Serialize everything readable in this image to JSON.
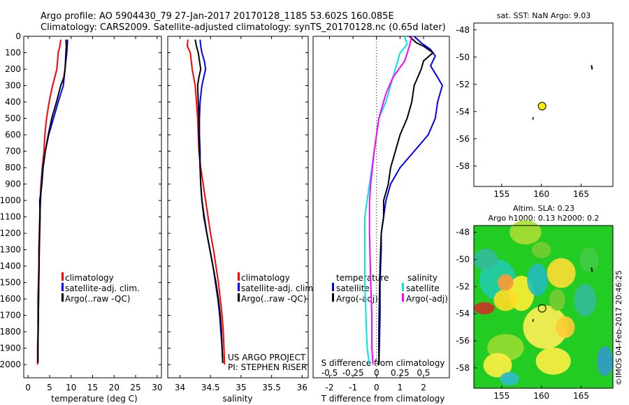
{
  "header": {
    "title": "Argo profile: AO 5904430_79 27-Jan-2017 20170128_1185 53.602S 160.085E",
    "subtitle": "Climatology: CARS2009. Satellite-adjusted climatology: synTS_20170128.nc (0.65d later)"
  },
  "side_text": {
    "credit": "©IMOS 04-Feb-2017 20:46:25",
    "project": "US ARGO PROJECT",
    "pi": "PI: STEPHEN RISER"
  },
  "colors": {
    "climatology": "#ff0000",
    "satellite": "#0000ff",
    "argo": "#000000",
    "sat_s": "#00e5e5",
    "argo_s": "#ff00ff"
  },
  "chart_data": [
    {
      "id": "temperature",
      "type": "line",
      "xlabel": "temperature (deg C)",
      "xlim": [
        -1,
        31
      ],
      "xticks": [
        0,
        5,
        10,
        15,
        20,
        25,
        30
      ],
      "ylim": [
        2080,
        0
      ],
      "yticks": [
        0,
        100,
        200,
        300,
        400,
        500,
        600,
        700,
        800,
        900,
        1000,
        1100,
        1200,
        1300,
        1400,
        1500,
        1600,
        1700,
        1800,
        1900,
        2000
      ],
      "legend": [
        "climatology",
        "satellite-adj. clim.",
        "Argo(..raw -QC)"
      ],
      "series": [
        {
          "name": "climatology",
          "color": "#ff0000",
          "points": [
            [
              7.6,
              20
            ],
            [
              7.4,
              60
            ],
            [
              7.0,
              100
            ],
            [
              6.7,
              200
            ],
            [
              5.7,
              300
            ],
            [
              4.9,
              400
            ],
            [
              4.3,
              500
            ],
            [
              3.9,
              600
            ],
            [
              3.7,
              700
            ],
            [
              3.3,
              800
            ],
            [
              3.0,
              900
            ],
            [
              2.8,
              1000
            ],
            [
              2.7,
              1100
            ],
            [
              2.6,
              1200
            ],
            [
              2.5,
              1300
            ],
            [
              2.5,
              1400
            ],
            [
              2.4,
              1500
            ],
            [
              2.3,
              1600
            ],
            [
              2.3,
              1700
            ],
            [
              2.3,
              1800
            ],
            [
              2.2,
              1900
            ],
            [
              2.2,
              2000
            ]
          ]
        },
        {
          "name": "satellite-adj. clim.",
          "color": "#0000ff",
          "points": [
            [
              9.2,
              20
            ],
            [
              9.0,
              100
            ],
            [
              8.8,
              150
            ],
            [
              8.2,
              300
            ],
            [
              7.0,
              400
            ],
            [
              5.9,
              500
            ],
            [
              4.8,
              600
            ],
            [
              4.0,
              700
            ],
            [
              3.4,
              800
            ],
            [
              3.1,
              900
            ],
            [
              2.9,
              1000
            ],
            [
              2.75,
              1100
            ],
            [
              2.65,
              1200
            ],
            [
              2.6,
              1300
            ],
            [
              2.55,
              1400
            ],
            [
              2.5,
              1500
            ],
            [
              2.45,
              1600
            ],
            [
              2.4,
              1700
            ],
            [
              2.35,
              1800
            ],
            [
              2.3,
              1900
            ],
            [
              2.3,
              1980
            ]
          ]
        },
        {
          "name": "Argo(..raw -QC)",
          "color": "#000000",
          "points": [
            [
              8.8,
              20
            ],
            [
              8.9,
              60
            ],
            [
              8.8,
              100
            ],
            [
              8.6,
              200
            ],
            [
              8.3,
              250
            ],
            [
              7.6,
              300
            ],
            [
              6.6,
              400
            ],
            [
              5.5,
              500
            ],
            [
              4.7,
              600
            ],
            [
              4.0,
              700
            ],
            [
              3.5,
              800
            ],
            [
              3.2,
              900
            ],
            [
              3.0,
              950
            ],
            [
              2.7,
              1000
            ],
            [
              2.8,
              1100
            ],
            [
              2.7,
              1200
            ],
            [
              2.6,
              1300
            ],
            [
              2.55,
              1400
            ],
            [
              2.5,
              1500
            ],
            [
              2.45,
              1600
            ],
            [
              2.4,
              1700
            ],
            [
              2.35,
              1800
            ],
            [
              2.3,
              1900
            ],
            [
              2.3,
              1990
            ]
          ]
        }
      ]
    },
    {
      "id": "salinity",
      "type": "line",
      "xlabel": "salinity",
      "xlim": [
        33.8,
        36.1
      ],
      "xticks": [
        34,
        34.5,
        35,
        35.5,
        36
      ],
      "ylim": [
        2080,
        0
      ],
      "yticks": [
        0,
        100,
        200,
        300,
        400,
        500,
        600,
        700,
        800,
        900,
        1000,
        1100,
        1200,
        1300,
        1400,
        1500,
        1600,
        1700,
        1800,
        1900,
        2000
      ],
      "legend": [
        "climatology",
        "satellite-adj. clim.",
        "Argo(..raw -QC)"
      ],
      "series": [
        {
          "name": "climatology",
          "color": "#ff0000",
          "points": [
            [
              34.13,
              20
            ],
            [
              34.12,
              60
            ],
            [
              34.17,
              100
            ],
            [
              34.2,
              200
            ],
            [
              34.25,
              300
            ],
            [
              34.27,
              400
            ],
            [
              34.29,
              500
            ],
            [
              34.3,
              600
            ],
            [
              34.31,
              700
            ],
            [
              34.34,
              800
            ],
            [
              34.38,
              900
            ],
            [
              34.42,
              1000
            ],
            [
              34.46,
              1100
            ],
            [
              34.5,
              1200
            ],
            [
              34.55,
              1300
            ],
            [
              34.59,
              1400
            ],
            [
              34.63,
              1500
            ],
            [
              34.66,
              1600
            ],
            [
              34.69,
              1700
            ],
            [
              34.71,
              1800
            ],
            [
              34.72,
              1900
            ],
            [
              34.73,
              2000
            ]
          ]
        },
        {
          "name": "satellite-adj. clim.",
          "color": "#0000ff",
          "points": [
            [
              34.33,
              20
            ],
            [
              34.34,
              60
            ],
            [
              34.36,
              100
            ],
            [
              34.4,
              150
            ],
            [
              34.42,
              200
            ],
            [
              34.36,
              300
            ],
            [
              34.33,
              400
            ],
            [
              34.32,
              500
            ],
            [
              34.32,
              600
            ],
            [
              34.33,
              700
            ],
            [
              34.33,
              800
            ],
            [
              34.34,
              900
            ],
            [
              34.36,
              1000
            ],
            [
              34.4,
              1100
            ],
            [
              34.44,
              1200
            ],
            [
              34.49,
              1300
            ],
            [
              34.54,
              1400
            ],
            [
              34.58,
              1500
            ],
            [
              34.62,
              1600
            ],
            [
              34.65,
              1700
            ],
            [
              34.67,
              1800
            ],
            [
              34.69,
              1900
            ],
            [
              34.7,
              1990
            ]
          ]
        },
        {
          "name": "Argo(..raw -QC)",
          "color": "#000000",
          "points": [
            [
              34.25,
              20
            ],
            [
              34.27,
              60
            ],
            [
              34.3,
              100
            ],
            [
              34.32,
              150
            ],
            [
              34.34,
              200
            ],
            [
              34.31,
              250
            ],
            [
              34.29,
              300
            ],
            [
              34.3,
              400
            ],
            [
              34.31,
              500
            ],
            [
              34.31,
              600
            ],
            [
              34.32,
              700
            ],
            [
              34.33,
              800
            ],
            [
              34.34,
              900
            ],
            [
              34.36,
              1000
            ],
            [
              34.39,
              1100
            ],
            [
              34.44,
              1200
            ],
            [
              34.49,
              1300
            ],
            [
              34.54,
              1400
            ],
            [
              34.59,
              1500
            ],
            [
              34.63,
              1600
            ],
            [
              34.66,
              1700
            ],
            [
              34.68,
              1800
            ],
            [
              34.69,
              1900
            ],
            [
              34.7,
              1990
            ]
          ]
        }
      ]
    },
    {
      "id": "difference",
      "type": "line",
      "xlabel": "T difference from climatology",
      "xlabel_top": "S difference from climatology",
      "xlim": [
        -2.7,
        3.1
      ],
      "xticks": [
        -2,
        -1,
        0,
        1,
        2
      ],
      "xticks_s": [
        {
          "label": "-0.5",
          "x": -2
        },
        {
          "label": "-0.25",
          "x": -1
        },
        {
          "label": "0",
          "x": 0
        },
        {
          "label": "0.25",
          "x": 1
        },
        {
          "label": "0.5",
          "x": 2
        }
      ],
      "ylim": [
        2080,
        0
      ],
      "legend": {
        "temperature_header": "temperature",
        "salinity_header": "salinity",
        "items": [
          "satellite",
          "Argo(-adj)",
          "satellite",
          "Argo(-adj)"
        ]
      },
      "series": [
        {
          "name": "T satellite",
          "color": "#0000ff",
          "points": [
            [
              1.6,
              0
            ],
            [
              1.9,
              40
            ],
            [
              2.3,
              80
            ],
            [
              2.5,
              120
            ],
            [
              2.3,
              180
            ],
            [
              2.6,
              250
            ],
            [
              2.8,
              300
            ],
            [
              2.6,
              400
            ],
            [
              2.5,
              500
            ],
            [
              2.2,
              600
            ],
            [
              1.6,
              700
            ],
            [
              1.0,
              800
            ],
            [
              0.6,
              900
            ],
            [
              0.4,
              1000
            ],
            [
              0.3,
              1100
            ],
            [
              0.2,
              1200
            ],
            [
              0.2,
              1300
            ],
            [
              0.15,
              1500
            ],
            [
              0.15,
              1700
            ],
            [
              0.12,
              1900
            ],
            [
              0.1,
              2000
            ]
          ]
        },
        {
          "name": "T Argo(-adj)",
          "color": "#000000",
          "points": [
            [
              1.4,
              0
            ],
            [
              1.7,
              40
            ],
            [
              2.0,
              60
            ],
            [
              2.4,
              100
            ],
            [
              2.0,
              150
            ],
            [
              1.9,
              200
            ],
            [
              1.6,
              300
            ],
            [
              1.5,
              400
            ],
            [
              1.3,
              500
            ],
            [
              1.0,
              600
            ],
            [
              0.8,
              700
            ],
            [
              0.6,
              800
            ],
            [
              0.5,
              900
            ],
            [
              0.3,
              1000
            ],
            [
              0.3,
              1100
            ],
            [
              0.2,
              1200
            ],
            [
              0.15,
              1400
            ],
            [
              0.12,
              1600
            ],
            [
              0.1,
              1800
            ],
            [
              0.1,
              2000
            ]
          ]
        },
        {
          "name": "S satellite",
          "color": "#00e5e5",
          "points": [
            [
              1.2,
              0
            ],
            [
              1.3,
              50
            ],
            [
              1.0,
              100
            ],
            [
              0.8,
              200
            ],
            [
              0.6,
              300
            ],
            [
              0.4,
              400
            ],
            [
              0.1,
              500
            ],
            [
              -0.1,
              700
            ],
            [
              -0.3,
              900
            ],
            [
              -0.4,
              1000
            ],
            [
              -0.5,
              1100
            ],
            [
              -0.5,
              1300
            ],
            [
              -0.5,
              1500
            ],
            [
              -0.45,
              1700
            ],
            [
              -0.4,
              1900
            ],
            [
              -0.3,
              2000
            ]
          ]
        },
        {
          "name": "S Argo(-adj)",
          "color": "#ff00ff",
          "points": [
            [
              1.5,
              0
            ],
            [
              1.4,
              60
            ],
            [
              1.2,
              150
            ],
            [
              0.7,
              250
            ],
            [
              0.4,
              350
            ],
            [
              0.1,
              500
            ],
            [
              -0.1,
              700
            ],
            [
              -0.25,
              900
            ],
            [
              -0.3,
              1000
            ],
            [
              -0.3,
              1200
            ],
            [
              -0.25,
              1500
            ],
            [
              -0.2,
              1700
            ],
            [
              -0.2,
              1900
            ],
            [
              -0.15,
              2000
            ]
          ]
        }
      ]
    },
    {
      "id": "sst-map",
      "type": "scatter",
      "title": "sat. SST: NaN Argo: 9.03",
      "xlim": [
        151.5,
        169
      ],
      "ylim": [
        -59.5,
        -47.5
      ],
      "xticks": [
        155,
        160,
        165
      ],
      "yticks": [
        -48,
        -50,
        -52,
        -54,
        -56,
        -58
      ],
      "profile": {
        "lon": 160.085,
        "lat": -53.602
      }
    },
    {
      "id": "sla-map",
      "type": "heatmap",
      "title": "Altim. SLA: 0.23",
      "subtitle": "Argo h1000: 0.13 h2000: 0.2",
      "xlim": [
        151.5,
        169
      ],
      "ylim": [
        -59.5,
        -47.5
      ],
      "xticks": [
        155,
        160,
        165
      ],
      "yticks": [
        -48,
        -50,
        -52,
        -54,
        -56,
        -58
      ],
      "profile": {
        "lon": 160.085,
        "lat": -53.602
      }
    }
  ]
}
